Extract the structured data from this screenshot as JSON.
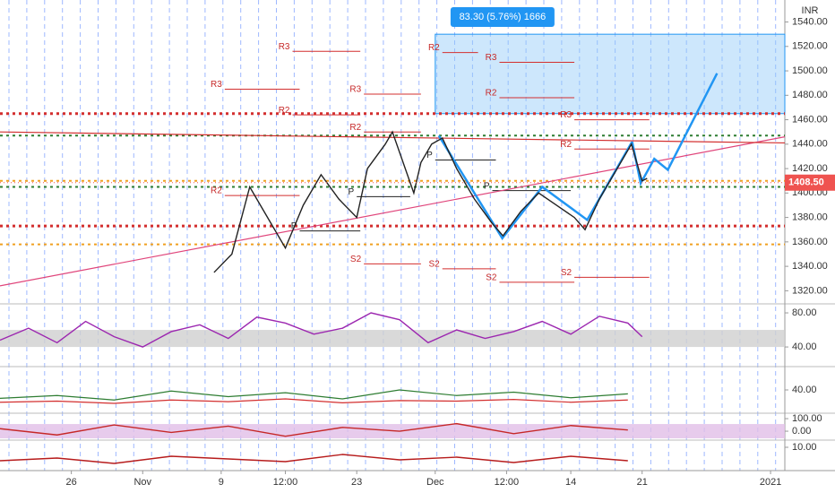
{
  "chart_data": [
    {
      "type": "line",
      "unit": "INR",
      "color": "#222222",
      "x": [
        30,
        32.5,
        35,
        37.5,
        40,
        42.5,
        45,
        47.5,
        50,
        51.5,
        54,
        55,
        58,
        59,
        60.5,
        62,
        64,
        66.5,
        69,
        70.5,
        73,
        75.5,
        78,
        80.5,
        82,
        84,
        86.5,
        88.5,
        90,
        90.7
      ],
      "values": [
        1335,
        1350,
        1405,
        1380,
        1355,
        1390,
        1415,
        1395,
        1380,
        1420,
        1440,
        1450,
        1400,
        1425,
        1440,
        1445,
        1420,
        1395,
        1375,
        1365,
        1385,
        1400,
        1390,
        1380,
        1370,
        1395,
        1420,
        1440,
        1410,
        1412
      ],
      "xlim": [
        0,
        110
      ],
      "xticks": [
        {
          "value": 10,
          "label": "26"
        },
        {
          "value": 20,
          "label": "Nov"
        },
        {
          "value": 31,
          "label": "9"
        },
        {
          "value": 40,
          "label": "12:00"
        },
        {
          "value": 50,
          "label": "23"
        },
        {
          "value": 61,
          "label": "Dec"
        },
        {
          "value": 71,
          "label": "12:00"
        },
        {
          "value": 80,
          "label": "14"
        },
        {
          "value": 90,
          "label": "21"
        },
        {
          "value": 108,
          "label": "2021"
        }
      ],
      "ylim": [
        1310,
        1558
      ],
      "yticks": [
        {
          "value": 1320,
          "label": "1320.00"
        },
        {
          "value": 1340,
          "label": "1340.00"
        },
        {
          "value": 1360,
          "label": "1360.00"
        },
        {
          "value": 1380,
          "label": "1380.00"
        },
        {
          "value": 1400,
          "label": "1400.00"
        },
        {
          "value": 1420,
          "label": "1420.00"
        },
        {
          "value": 1440,
          "label": "1440.00"
        },
        {
          "value": 1460,
          "label": "1460.00"
        },
        {
          "value": 1480,
          "label": "1480.00"
        },
        {
          "value": 1500,
          "label": "1500.00"
        },
        {
          "value": 1520,
          "label": "1520.00"
        },
        {
          "value": 1540,
          "label": "1540.00"
        }
      ],
      "last_price": {
        "value": 1408.5,
        "label": "1408.50"
      },
      "measure": {
        "label": "83.30 (5.76%) 1666",
        "xlim": [
          61,
          110
        ],
        "ylim": [
          1465,
          1530
        ]
      },
      "levels": [
        {
          "value": 1465,
          "color": "#d32f2f"
        },
        {
          "value": 1447,
          "color": "#2e7d32"
        },
        {
          "value": 1405,
          "color": "#2e7d32"
        },
        {
          "value": 1410,
          "color": "#f0a020"
        },
        {
          "value": 1373,
          "color": "#d32f2f"
        },
        {
          "value": 1358,
          "color": "#f0a020"
        }
      ],
      "pivots": [
        {
          "label": "R3",
          "value": 1516,
          "x": [
            41,
            50.5
          ]
        },
        {
          "label": "R3",
          "value": 1485,
          "x": [
            31.5,
            42
          ]
        },
        {
          "label": "R2",
          "value": 1464,
          "x": [
            41,
            50.5
          ]
        },
        {
          "label": "R3",
          "value": 1481,
          "x": [
            51,
            59
          ]
        },
        {
          "label": "R2",
          "value": 1450,
          "x": [
            51,
            59
          ]
        },
        {
          "label": "R2",
          "value": 1398,
          "x": [
            31.5,
            42
          ]
        },
        {
          "label": "P",
          "value": 1369,
          "x": [
            42,
            50.5
          ]
        },
        {
          "label": "P",
          "value": 1397,
          "x": [
            50,
            57.5
          ]
        },
        {
          "label": "S2",
          "value": 1342,
          "x": [
            51,
            59
          ]
        },
        {
          "label": "R2",
          "value": 1515,
          "x": [
            62,
            67
          ]
        },
        {
          "label": "R3",
          "value": 1507,
          "x": [
            70,
            80.5
          ]
        },
        {
          "label": "R2",
          "value": 1478,
          "x": [
            70,
            80.5
          ]
        },
        {
          "label": "R3",
          "value": 1460,
          "x": [
            80.5,
            91
          ]
        },
        {
          "label": "R2",
          "value": 1436,
          "x": [
            80.5,
            91
          ]
        },
        {
          "label": "P",
          "value": 1427,
          "x": [
            61,
            69.5
          ]
        },
        {
          "label": "P",
          "value": 1402,
          "x": [
            69,
            80
          ]
        },
        {
          "label": "S2",
          "value": 1338,
          "x": [
            62,
            69.5
          ]
        },
        {
          "label": "S2",
          "value": 1327,
          "x": [
            70,
            80.5
          ]
        },
        {
          "label": "S2",
          "value": 1331,
          "x": [
            80.5,
            91
          ]
        }
      ],
      "trendlines": [
        {
          "color": "#e0457b",
          "x": [
            0,
            110
          ],
          "values": [
            1324,
            1446
          ]
        },
        {
          "color": "#d32f2f",
          "x": [
            0,
            110
          ],
          "values": [
            1450,
            1441
          ]
        },
        {
          "color": "#2196f3",
          "x": [
            61.5,
            70.4,
            76,
            82.3,
            88.6
          ],
          "values": [
            1447,
            1363,
            1405,
            1378,
            1442
          ]
        },
        {
          "color": "#2196f3",
          "x": [
            88.6,
            89.8,
            91.7,
            93.6,
            100.5
          ],
          "values": [
            1442,
            1408,
            1428,
            1419,
            1498
          ]
        }
      ]
    },
    {
      "type": "line",
      "color": "#9c27b0",
      "x": [
        0,
        4,
        8,
        12,
        16,
        20,
        24,
        28,
        32,
        36,
        40,
        44,
        48,
        52,
        56,
        60,
        64,
        68,
        72,
        76,
        80,
        84,
        88,
        90
      ],
      "values": [
        48,
        62,
        45,
        70,
        52,
        40,
        58,
        66,
        50,
        75,
        68,
        55,
        62,
        80,
        72,
        45,
        60,
        50,
        58,
        70,
        55,
        76,
        68,
        52
      ],
      "ylim": [
        18,
        89.5
      ],
      "yticks": [
        {
          "value": 80,
          "label": "80.00"
        },
        {
          "value": 40,
          "label": "40.00"
        }
      ],
      "band": [
        40,
        60
      ]
    },
    {
      "type": "line",
      "x": [
        0,
        8,
        16,
        24,
        32,
        40,
        48,
        56,
        64,
        72,
        80,
        88
      ],
      "series": [
        {
          "color": "#2e7d32",
          "values": [
            25,
            30,
            22,
            38,
            28,
            35,
            24,
            40,
            30,
            36,
            26,
            33
          ]
        },
        {
          "color": "#d32f2f",
          "values": [
            18,
            20,
            16,
            22,
            19,
            24,
            17,
            21,
            20,
            23,
            18,
            22
          ]
        }
      ],
      "ylim": [
        0,
        80
      ],
      "yticks": [
        {
          "value": 40,
          "label": "40.00"
        }
      ]
    },
    {
      "type": "line",
      "color": "#c62828",
      "x": [
        0,
        8,
        16,
        24,
        32,
        40,
        48,
        56,
        64,
        72,
        80,
        88
      ],
      "values": [
        20,
        -30,
        50,
        -10,
        40,
        -40,
        30,
        0,
        60,
        -20,
        45,
        10
      ],
      "ylim": [
        -64,
        136
      ],
      "yticks": [
        {
          "value": 100,
          "label": "100.00"
        },
        {
          "value": 0,
          "label": "0.00"
        }
      ],
      "band": [
        -57,
        57
      ]
    },
    {
      "type": "line",
      "color": "#b71c1c",
      "x": [
        0,
        8,
        16,
        24,
        32,
        40,
        48,
        56,
        64,
        72,
        80,
        88
      ],
      "values": [
        -5,
        -2,
        -8,
        0,
        -3,
        -6,
        2,
        -4,
        -1,
        -7,
        0,
        -5
      ],
      "ylim": [
        -16,
        17
      ],
      "yticks": [
        {
          "value": 10,
          "label": "10.00"
        }
      ]
    }
  ]
}
